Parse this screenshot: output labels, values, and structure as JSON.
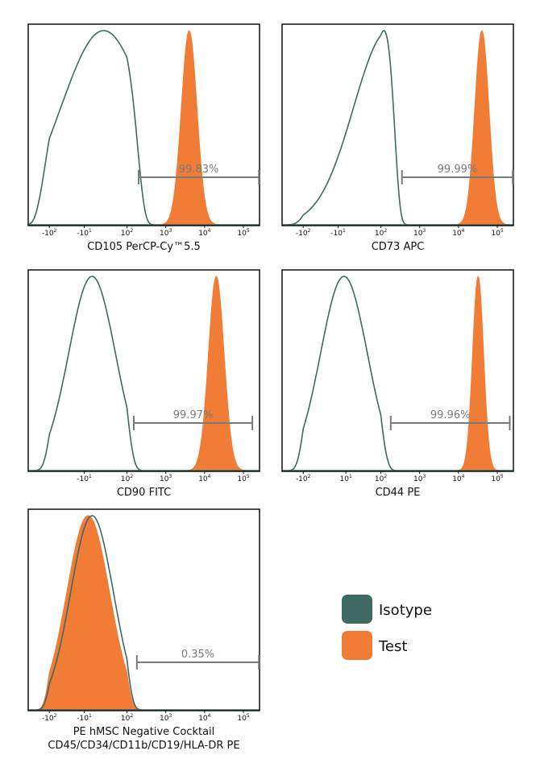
{
  "colors": {
    "isotype": "#3f6a63",
    "test": "#f07c35",
    "gate": "#7a7a7a",
    "frame": "#111111"
  },
  "legend": {
    "items": [
      {
        "label": "Isotype",
        "color": "#3f6a63"
      },
      {
        "label": "Test",
        "color": "#f07c35"
      }
    ]
  },
  "chart_data": [
    {
      "type": "area",
      "id": "cd105",
      "xlabel": "CD105 PerCP-Cy™5.5",
      "xlabel_lines": [
        "CD105 PerCP-Cy™5.5"
      ],
      "ticks": [
        {
          "base": "-10",
          "exp": "2",
          "value": -100
        },
        {
          "base": "-10",
          "exp": "1",
          "value": -10
        },
        {
          "base": "10",
          "exp": "2",
          "value": 100
        },
        {
          "base": "10",
          "exp": "3",
          "value": 1000
        },
        {
          "base": "10",
          "exp": "4",
          "value": 10000
        },
        {
          "base": "10",
          "exp": "5",
          "value": 100000
        }
      ],
      "series": [
        {
          "name": "Isotype",
          "peak": 40,
          "width": 110,
          "style": "outline"
        },
        {
          "name": "Test",
          "peak": 4000,
          "log_sd": 0.2,
          "style": "filled"
        }
      ],
      "gate": {
        "label": "99.83%",
        "from": 200,
        "to": 250000
      }
    },
    {
      "type": "area",
      "id": "cd73",
      "xlabel": "CD73 APC",
      "xlabel_lines": [
        "CD73 APC"
      ],
      "ticks": [
        {
          "base": "-10",
          "exp": "2",
          "value": -100
        },
        {
          "base": "-10",
          "exp": "1",
          "value": -10
        },
        {
          "base": "10",
          "exp": "2",
          "value": 100
        },
        {
          "base": "10",
          "exp": "3",
          "value": 1000
        },
        {
          "base": "10",
          "exp": "4",
          "value": 10000
        },
        {
          "base": "10",
          "exp": "5",
          "value": 100000
        }
      ],
      "series": [
        {
          "name": "Isotype",
          "peak": 120,
          "width": 90,
          "style": "outline"
        },
        {
          "name": "Test",
          "peak": 40000,
          "log_sd": 0.18,
          "style": "filled"
        }
      ],
      "gate": {
        "label": "99.99%",
        "from": 350,
        "to": 250000
      }
    },
    {
      "type": "area",
      "id": "cd90",
      "xlabel": "CD90 FITC",
      "xlabel_lines": [
        "CD90 FITC"
      ],
      "ticks": [
        {
          "base": "-10",
          "exp": "1",
          "value": -10
        },
        {
          "base": "10",
          "exp": "2",
          "value": 100
        },
        {
          "base": "10",
          "exp": "3",
          "value": 1000
        },
        {
          "base": "10",
          "exp": "4",
          "value": 10000
        },
        {
          "base": "10",
          "exp": "5",
          "value": 100000
        }
      ],
      "series": [
        {
          "name": "Isotype",
          "peak": 10,
          "width": 60,
          "style": "outline"
        },
        {
          "name": "Test",
          "peak": 20000,
          "log_sd": 0.2,
          "style": "filled"
        }
      ],
      "gate": {
        "label": "99.97%",
        "from": 150,
        "to": 170000
      }
    },
    {
      "type": "area",
      "id": "cd44",
      "xlabel": "CD44 PE",
      "xlabel_lines": [
        "CD44 PE"
      ],
      "ticks": [
        {
          "base": "-10",
          "exp": "2",
          "value": -100
        },
        {
          "base": "10",
          "exp": "1",
          "value": 10
        },
        {
          "base": "10",
          "exp": "2",
          "value": 100
        },
        {
          "base": "10",
          "exp": "3",
          "value": 1000
        },
        {
          "base": "10",
          "exp": "4",
          "value": 10000
        },
        {
          "base": "10",
          "exp": "5",
          "value": 100000
        }
      ],
      "series": [
        {
          "name": "Isotype",
          "peak": 5,
          "width": 60,
          "style": "outline"
        },
        {
          "name": "Test",
          "peak": 32000,
          "log_sd": 0.14,
          "style": "filled"
        }
      ],
      "gate": {
        "label": "99.96%",
        "from": 180,
        "to": 210000
      }
    },
    {
      "type": "area",
      "id": "neg",
      "xlabel": "PE hMSC Negative Cocktail CD45/CD34/CD11b/CD19/HLA-DR PE",
      "xlabel_lines": [
        "PE hMSC Negative Cocktail",
        "CD45/CD34/CD11b/CD19/HLA-DR PE"
      ],
      "ticks": [
        {
          "base": "-10",
          "exp": "2",
          "value": -100
        },
        {
          "base": "-10",
          "exp": "1",
          "value": -10
        },
        {
          "base": "10",
          "exp": "2",
          "value": 100
        },
        {
          "base": "10",
          "exp": "3",
          "value": 1000
        },
        {
          "base": "10",
          "exp": "4",
          "value": 10000
        },
        {
          "base": "10",
          "exp": "5",
          "value": 100000
        }
      ],
      "series": [
        {
          "name": "Isotype",
          "peak": 10,
          "width": 55,
          "style": "outline"
        },
        {
          "name": "Test",
          "peak": 0,
          "width": 55,
          "style": "filled"
        }
      ],
      "gate": {
        "label": "0.35%",
        "from": 180,
        "to": 250000
      }
    }
  ]
}
